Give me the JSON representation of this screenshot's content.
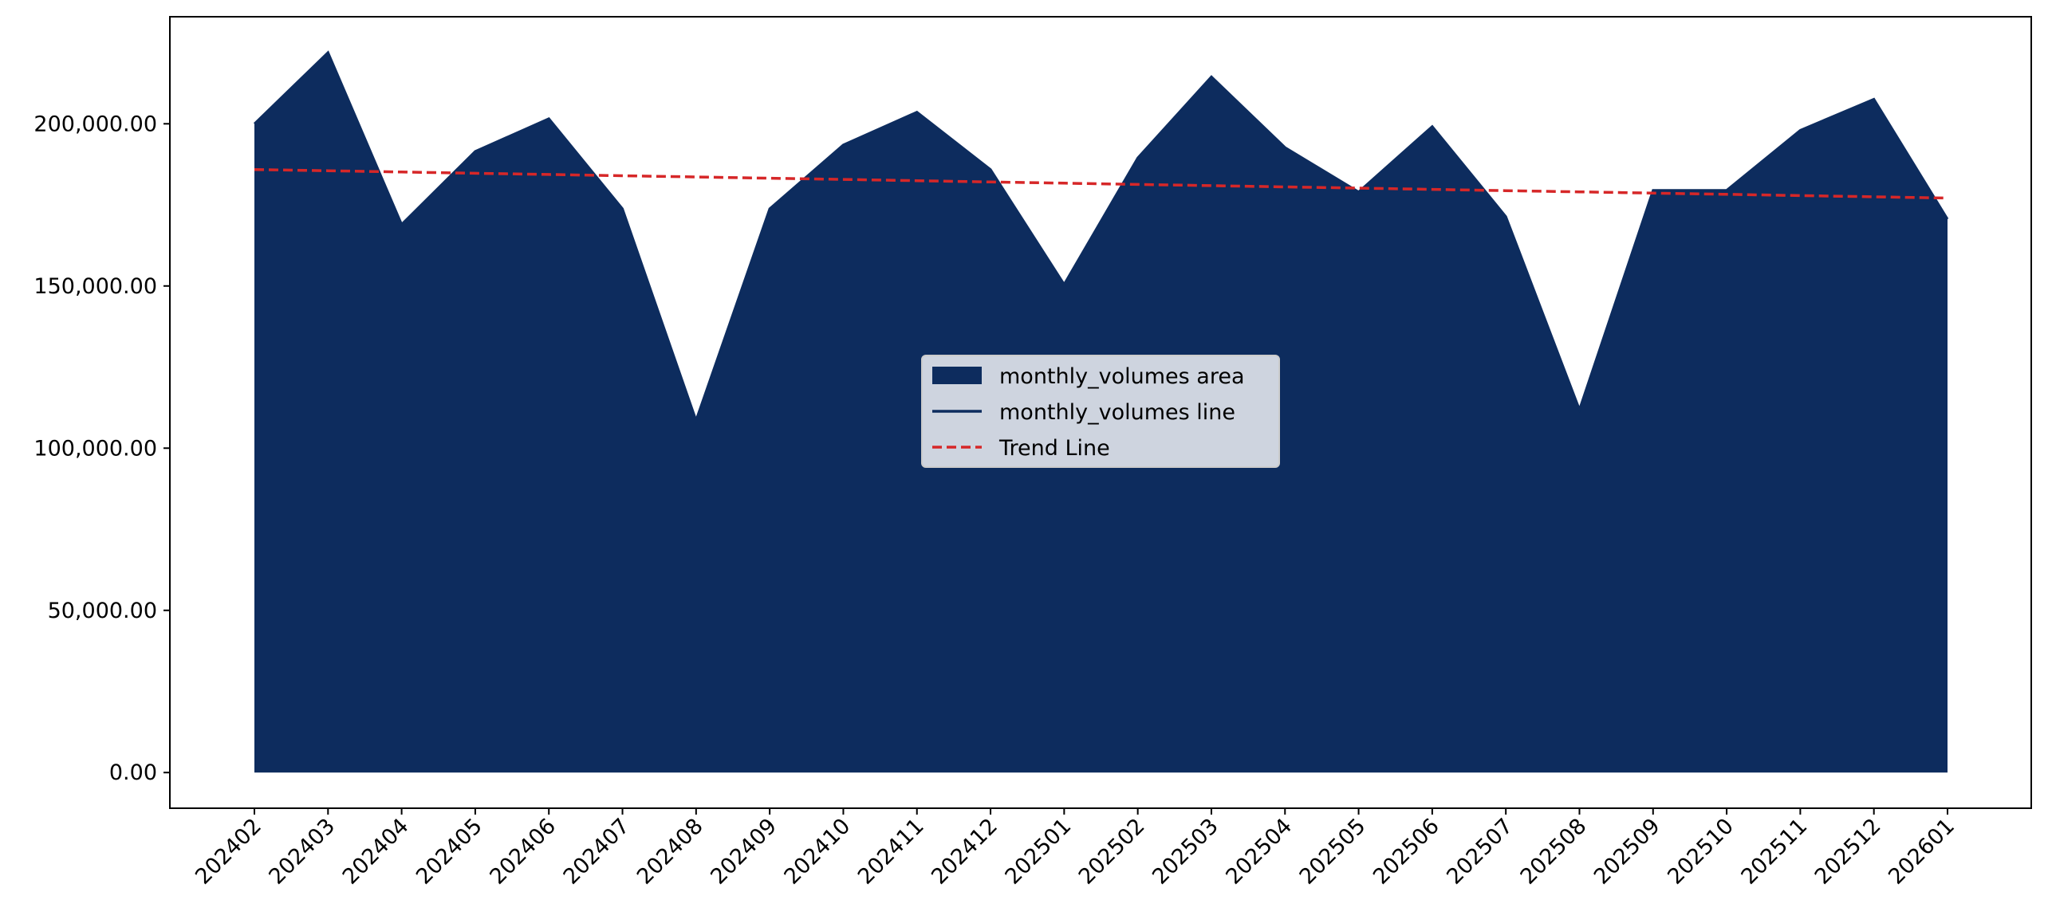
{
  "chart_data": {
    "type": "area",
    "categories": [
      "202402",
      "202403",
      "202404",
      "202405",
      "202406",
      "202407",
      "202408",
      "202409",
      "202410",
      "202411",
      "202412",
      "202501",
      "202502",
      "202503",
      "202504",
      "202505",
      "202506",
      "202507",
      "202508",
      "202509",
      "202510",
      "202511",
      "202512",
      "202601"
    ],
    "series": [
      {
        "name": "monthly_volumes area",
        "kind": "area",
        "color": "#0d2c5e",
        "values": [
          200000,
          222000,
          169000,
          191500,
          201600,
          173800,
          108600,
          173800,
          193500,
          203600,
          185900,
          150500,
          189500,
          214500,
          192700,
          179000,
          199200,
          171400,
          111900,
          179500,
          179500,
          198000,
          207600,
          170600
        ]
      },
      {
        "name": "monthly_volumes line",
        "kind": "line",
        "color": "#0d2c5e",
        "values": [
          200000,
          222000,
          169000,
          191500,
          201600,
          173800,
          108600,
          173800,
          193500,
          203600,
          185900,
          150500,
          189500,
          214500,
          192700,
          179000,
          199200,
          171400,
          111900,
          179500,
          179500,
          198000,
          207600,
          170600
        ]
      },
      {
        "name": "Trend Line",
        "kind": "dashed",
        "color": "#d62728",
        "values": [
          185900,
          185517,
          185135,
          184752,
          184370,
          183987,
          183604,
          183222,
          182839,
          182457,
          182074,
          181691,
          181309,
          180926,
          180543,
          180161,
          179778,
          179396,
          179013,
          178630,
          178248,
          177865,
          177483,
          177100
        ]
      }
    ],
    "ylim": [
      -11000,
      233000
    ],
    "yticks": [
      {
        "value": 0,
        "label": "0.00"
      },
      {
        "value": 50000,
        "label": "50,000.00"
      },
      {
        "value": 100000,
        "label": "100,000.00"
      },
      {
        "value": 150000,
        "label": "150,000.00"
      },
      {
        "value": 200000,
        "label": "200,000.00"
      }
    ],
    "legend": "center"
  }
}
